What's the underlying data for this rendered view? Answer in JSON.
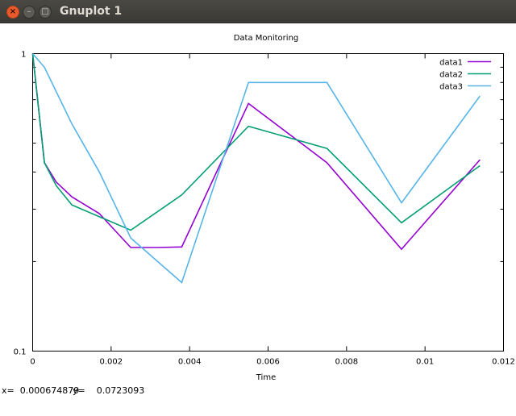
{
  "window": {
    "title": "Gnuplot 1",
    "close_glyph": "×",
    "minimize_glyph": "–",
    "maximize_glyph": "□"
  },
  "chart_data": {
    "type": "line",
    "title": "Data Monitoring",
    "xlabel": "Time",
    "ylabel": "",
    "xlim": [
      0,
      0.012
    ],
    "ylim": [
      0.1,
      1
    ],
    "y_scale": "log",
    "x_ticks": [
      {
        "value": 0,
        "label": "0"
      },
      {
        "value": 0.002,
        "label": "0.002"
      },
      {
        "value": 0.004,
        "label": "0.004"
      },
      {
        "value": 0.006,
        "label": "0.006"
      },
      {
        "value": 0.008,
        "label": "0.008"
      },
      {
        "value": 0.01,
        "label": "0.01"
      },
      {
        "value": 0.012,
        "label": "0.012"
      }
    ],
    "y_ticks": [
      {
        "value": 0.1,
        "label": "0.1"
      },
      {
        "value": 1,
        "label": "1"
      }
    ],
    "y_minor_ticks": [
      0.2,
      0.3,
      0.4,
      0.5,
      0.6,
      0.7,
      0.8,
      0.9
    ],
    "grid": false,
    "legend_position": "top-right",
    "series": [
      {
        "name": "data1",
        "color": "#9400d3",
        "x": [
          0,
          0.0003,
          0.0006,
          0.001,
          0.0017,
          0.0025,
          0.0032,
          0.0038,
          0.0055,
          0.0075,
          0.0094,
          0.0114
        ],
        "y": [
          1.0,
          0.43,
          0.37,
          0.33,
          0.29,
          0.223,
          0.223,
          0.224,
          0.68,
          0.43,
          0.22,
          0.44
        ]
      },
      {
        "name": "data2",
        "color": "#009e73",
        "x": [
          0,
          0.0003,
          0.0006,
          0.001,
          0.0025,
          0.0038,
          0.0055,
          0.0075,
          0.0094,
          0.0114
        ],
        "y": [
          1.0,
          0.43,
          0.36,
          0.31,
          0.255,
          0.335,
          0.57,
          0.48,
          0.27,
          0.42
        ]
      },
      {
        "name": "data3",
        "color": "#56b4e9",
        "x": [
          0,
          0.0003,
          0.001,
          0.0017,
          0.0025,
          0.0038,
          0.0055,
          0.0075,
          0.0094,
          0.0114
        ],
        "y": [
          1.0,
          0.9,
          0.58,
          0.4,
          0.24,
          0.17,
          0.8,
          0.8,
          0.315,
          0.72
        ]
      }
    ]
  },
  "status": {
    "x_readout": "x=  0.000674879",
    "y_readout": "y=    0.0723093"
  }
}
